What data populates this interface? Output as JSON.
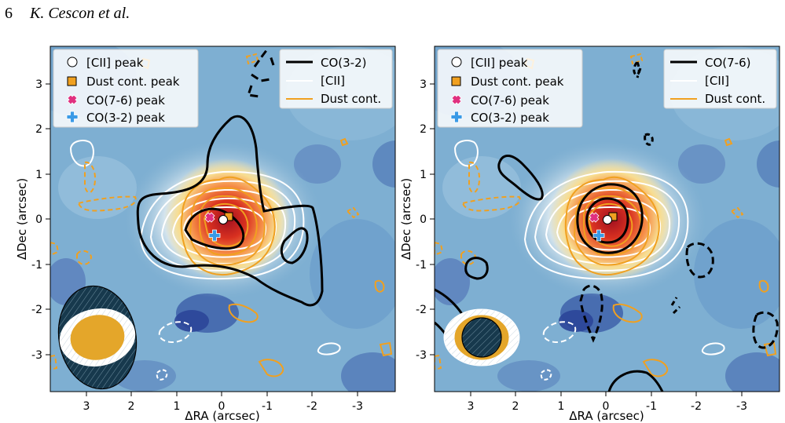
{
  "page": {
    "number": "6",
    "authors": "K. Cescon et al."
  },
  "panels": [
    {
      "id": "co32",
      "xlabel": "ΔRA (arcsec)",
      "ylabel": "ΔDec (arcsec)",
      "xticks": [
        "3",
        "2",
        "1",
        "0",
        "-1",
        "-2",
        "-3"
      ],
      "yticks": [
        "3",
        "2",
        "1",
        "0",
        "-1",
        "-2",
        "-3"
      ],
      "marker_legend": [
        "[CII] peak",
        "Dust cont. peak",
        "CO(7-6) peak",
        "CO(3-2) peak"
      ],
      "line_legend": [
        "CO(3-2)",
        "[CII]",
        "Dust cont."
      ]
    },
    {
      "id": "co76",
      "xlabel": "ΔRA (arcsec)",
      "ylabel": "ΔDec (arcsec)",
      "xticks": [
        "3",
        "2",
        "1",
        "0",
        "-1",
        "-2",
        "-3"
      ],
      "yticks": [
        "3",
        "2",
        "1",
        "0",
        "-1",
        "-2",
        "-3"
      ],
      "marker_legend": [
        "[CII] peak",
        "Dust cont. peak",
        "CO(7-6) peak",
        "CO(3-2) peak"
      ],
      "line_legend": [
        "CO(7-6)",
        "[CII]",
        "Dust cont."
      ]
    }
  ],
  "colors": {
    "cii": "#ffffff",
    "dust": "#f0a020",
    "co": "#000000",
    "co76_marker": "#e0307f",
    "co32_marker": "#3a9ae6"
  }
}
